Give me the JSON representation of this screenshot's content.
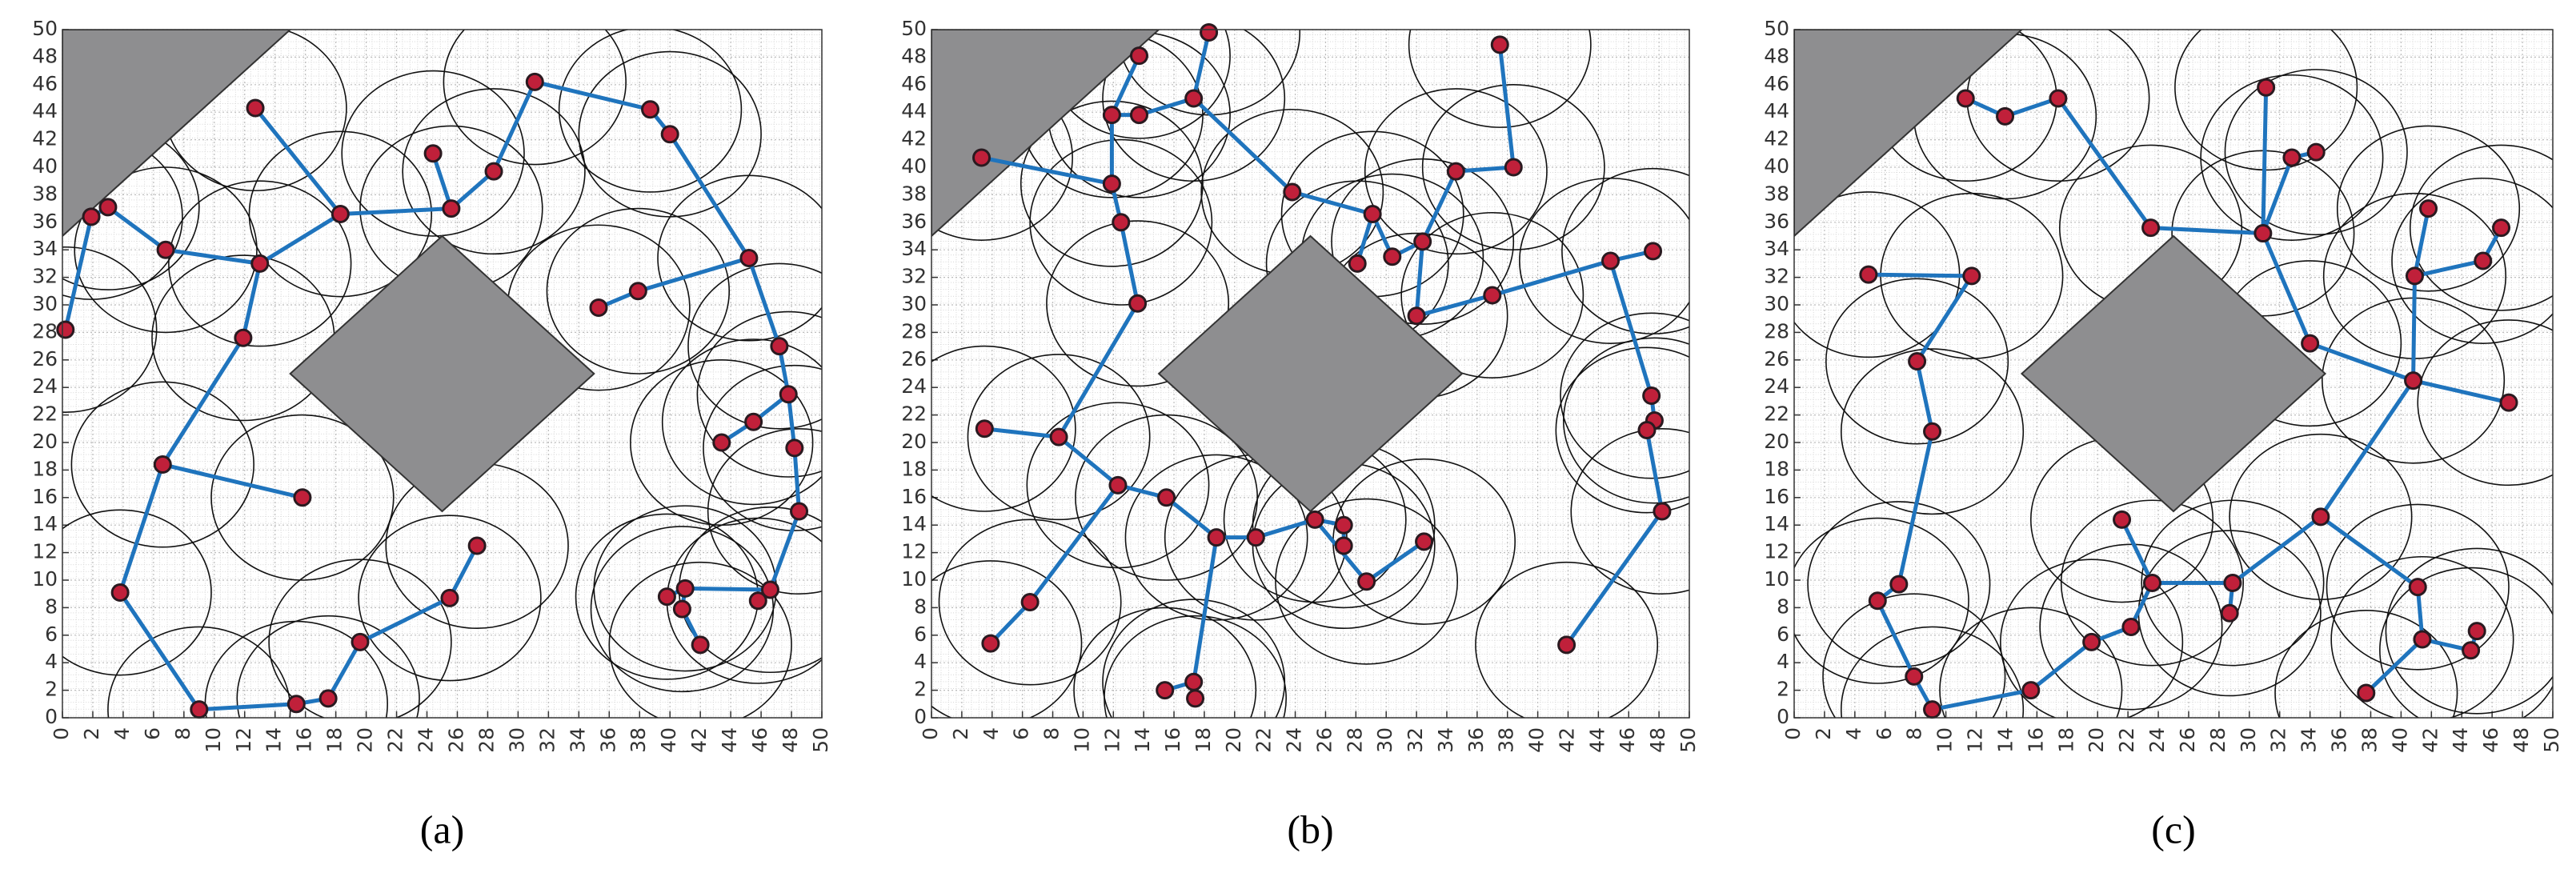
{
  "chart_data": [
    {
      "type": "scatter",
      "caption": "(a)",
      "xlim": [
        0,
        50
      ],
      "ylim": [
        0,
        50
      ],
      "xticks": [
        0,
        2,
        4,
        6,
        8,
        10,
        12,
        14,
        16,
        18,
        20,
        22,
        24,
        26,
        28,
        30,
        32,
        34,
        36,
        38,
        40,
        42,
        44,
        46,
        48,
        50
      ],
      "yticks": [
        0,
        2,
        4,
        6,
        8,
        10,
        12,
        14,
        16,
        18,
        20,
        22,
        24,
        26,
        28,
        30,
        32,
        34,
        36,
        38,
        40,
        42,
        44,
        46,
        48,
        50
      ],
      "grid": true,
      "color": "#c0203a",
      "edge_color": "#1f74bd",
      "circle_color": "#111111",
      "obstacle_color": "#8e8e90",
      "radius": 6,
      "x": [
        0.2,
        1.9,
        3,
        6.8,
        13,
        12.7,
        18.3,
        24.4,
        25.6,
        28.4,
        31.1,
        38.7,
        40,
        45.2,
        37.9,
        35.3,
        47.2,
        47.8,
        45.5,
        43.4,
        48.2,
        48.5,
        46.6,
        45.8,
        41,
        39.8,
        40.8,
        42,
        11.9,
        6.6,
        15.8,
        3.8,
        9,
        15.4,
        17.5,
        19.6,
        25.5,
        27.3
      ],
      "y": [
        28.2,
        36.4,
        37.1,
        34,
        33,
        44.3,
        36.6,
        41,
        37,
        39.7,
        46.2,
        44.2,
        42.4,
        33.4,
        31,
        29.8,
        27,
        23.5,
        21.5,
        20,
        19.6,
        15,
        9.3,
        8.5,
        9.4,
        8.8,
        7.9,
        5.3,
        27.6,
        18.4,
        16,
        9.1,
        0.6,
        1,
        1.4,
        5.5,
        8.7,
        12.5
      ],
      "edges": [
        [
          0,
          1
        ],
        [
          1,
          2
        ],
        [
          2,
          3
        ],
        [
          3,
          4
        ],
        [
          4,
          6
        ],
        [
          5,
          6
        ],
        [
          6,
          8
        ],
        [
          8,
          7
        ],
        [
          8,
          9
        ],
        [
          9,
          10
        ],
        [
          10,
          11
        ],
        [
          11,
          12
        ],
        [
          12,
          13
        ],
        [
          15,
          14
        ],
        [
          14,
          13
        ],
        [
          13,
          16
        ],
        [
          16,
          17
        ],
        [
          17,
          18
        ],
        [
          18,
          19
        ],
        [
          17,
          20
        ],
        [
          20,
          21
        ],
        [
          21,
          22
        ],
        [
          22,
          23
        ],
        [
          22,
          24
        ],
        [
          24,
          25
        ],
        [
          24,
          26
        ],
        [
          26,
          27
        ],
        [
          4,
          28
        ],
        [
          28,
          29
        ],
        [
          29,
          30
        ],
        [
          29,
          31
        ],
        [
          31,
          32
        ],
        [
          32,
          33
        ],
        [
          33,
          34
        ],
        [
          34,
          35
        ],
        [
          35,
          36
        ],
        [
          36,
          37
        ]
      ],
      "obstacles": [
        [
          [
            0,
            50
          ],
          [
            15,
            50
          ],
          [
            0,
            35
          ]
        ],
        [
          [
            15,
            25
          ],
          [
            25,
            35
          ],
          [
            35,
            25
          ],
          [
            25,
            15
          ]
        ]
      ]
    },
    {
      "type": "scatter",
      "caption": "(b)",
      "xlim": [
        0,
        50
      ],
      "ylim": [
        0,
        50
      ],
      "xticks": [
        0,
        2,
        4,
        6,
        8,
        10,
        12,
        14,
        16,
        18,
        20,
        22,
        24,
        26,
        28,
        30,
        32,
        34,
        36,
        38,
        40,
        42,
        44,
        46,
        48,
        50
      ],
      "yticks": [
        0,
        2,
        4,
        6,
        8,
        10,
        12,
        14,
        16,
        18,
        20,
        22,
        24,
        26,
        28,
        30,
        32,
        34,
        36,
        38,
        40,
        42,
        44,
        46,
        48,
        50
      ],
      "grid": true,
      "color": "#c0203a",
      "edge_color": "#1f74bd",
      "circle_color": "#111111",
      "obstacle_color": "#8e8e90",
      "radius": 6,
      "x": [
        3.3,
        3.5,
        3.9,
        6.5,
        8.4,
        12.3,
        15.5,
        18.8,
        21.4,
        25.3,
        27.2,
        27.2,
        28.7,
        32.5,
        15.4,
        17.3,
        17.4,
        13.6,
        12.5,
        11.9,
        11.9,
        13.7,
        13.7,
        17.3,
        18.3,
        23.8,
        29.1,
        30.4,
        28.1,
        32.4,
        34.6,
        38.4,
        37.5,
        32,
        37,
        44.8,
        47.6,
        47.5,
        47.7,
        47.2,
        48.2,
        41.9
      ],
      "y": [
        40.7,
        21,
        5.4,
        8.4,
        20.4,
        16.9,
        16,
        13.1,
        13.1,
        14.4,
        14,
        12.5,
        9.9,
        12.8,
        2,
        2.6,
        1.4,
        30.1,
        36,
        38.8,
        43.8,
        48.1,
        43.8,
        45,
        49.8,
        38.2,
        36.6,
        33.5,
        33,
        34.6,
        39.7,
        40,
        48.9,
        29.2,
        30.7,
        33.2,
        33.9,
        23.4,
        21.6,
        20.9,
        15,
        5.3
      ],
      "edges": [
        [
          0,
          19
        ],
        [
          1,
          4
        ],
        [
          4,
          5
        ],
        [
          5,
          3
        ],
        [
          3,
          2
        ],
        [
          5,
          6
        ],
        [
          6,
          7
        ],
        [
          7,
          8
        ],
        [
          8,
          9
        ],
        [
          9,
          10
        ],
        [
          10,
          11
        ],
        [
          9,
          12
        ],
        [
          12,
          13
        ],
        [
          7,
          15
        ],
        [
          15,
          14
        ],
        [
          15,
          16
        ],
        [
          4,
          17
        ],
        [
          17,
          18
        ],
        [
          18,
          19
        ],
        [
          19,
          20
        ],
        [
          20,
          21
        ],
        [
          20,
          22
        ],
        [
          22,
          23
        ],
        [
          23,
          24
        ],
        [
          23,
          25
        ],
        [
          25,
          26
        ],
        [
          26,
          27
        ],
        [
          26,
          28
        ],
        [
          27,
          29
        ],
        [
          29,
          30
        ],
        [
          30,
          31
        ],
        [
          31,
          32
        ],
        [
          29,
          33
        ],
        [
          33,
          34
        ],
        [
          34,
          35
        ],
        [
          35,
          36
        ],
        [
          35,
          37
        ],
        [
          37,
          38
        ],
        [
          38,
          39
        ],
        [
          39,
          40
        ],
        [
          40,
          41
        ]
      ],
      "obstacles": [
        [
          [
            0,
            50
          ],
          [
            15,
            50
          ],
          [
            0,
            35
          ]
        ],
        [
          [
            15,
            25
          ],
          [
            25,
            35
          ],
          [
            35,
            25
          ],
          [
            25,
            15
          ]
        ]
      ]
    },
    {
      "type": "scatter",
      "caption": "(c)",
      "xlim": [
        0,
        50
      ],
      "ylim": [
        0,
        50
      ],
      "xticks": [
        0,
        2,
        4,
        6,
        8,
        10,
        12,
        14,
        16,
        18,
        20,
        22,
        24,
        26,
        28,
        30,
        32,
        34,
        36,
        38,
        40,
        42,
        44,
        46,
        48,
        50
      ],
      "yticks": [
        0,
        2,
        4,
        6,
        8,
        10,
        12,
        14,
        16,
        18,
        20,
        22,
        24,
        26,
        28,
        30,
        32,
        34,
        36,
        38,
        40,
        42,
        44,
        46,
        48,
        50
      ],
      "grid": true,
      "color": "#c0203a",
      "edge_color": "#1f74bd",
      "circle_color": "#111111",
      "obstacle_color": "#8e8e90",
      "radius": 6,
      "x": [
        4.9,
        11.7,
        8.1,
        9.1,
        6.9,
        5.5,
        7.9,
        9.1,
        15.6,
        19.6,
        22.2,
        23.6,
        21.6,
        28.9,
        28.7,
        34.7,
        41.1,
        41.4,
        44.6,
        45,
        37.7,
        40.8,
        47.1,
        34,
        40.9,
        41.8,
        45.4,
        46.6,
        30.9,
        23.5,
        31.1,
        32.8,
        34.4,
        17.4,
        13.9,
        11.3
      ],
      "y": [
        32.2,
        32.1,
        25.9,
        20.8,
        9.7,
        8.5,
        3,
        0.6,
        2,
        5.5,
        6.6,
        9.8,
        14.4,
        9.8,
        7.6,
        14.6,
        9.5,
        5.7,
        4.9,
        6.3,
        1.8,
        24.5,
        22.9,
        27.2,
        32.1,
        37,
        33.2,
        35.6,
        35.2,
        35.6,
        45.8,
        40.7,
        41.1,
        45,
        43.7,
        45
      ],
      "edges": [
        [
          0,
          1
        ],
        [
          1,
          2
        ],
        [
          2,
          3
        ],
        [
          3,
          4
        ],
        [
          4,
          5
        ],
        [
          5,
          6
        ],
        [
          6,
          7
        ],
        [
          7,
          8
        ],
        [
          8,
          9
        ],
        [
          9,
          10
        ],
        [
          10,
          11
        ],
        [
          11,
          12
        ],
        [
          11,
          13
        ],
        [
          13,
          14
        ],
        [
          13,
          15
        ],
        [
          15,
          16
        ],
        [
          16,
          17
        ],
        [
          17,
          18
        ],
        [
          18,
          19
        ],
        [
          17,
          20
        ],
        [
          15,
          21
        ],
        [
          21,
          22
        ],
        [
          21,
          23
        ],
        [
          21,
          24
        ],
        [
          24,
          25
        ],
        [
          24,
          26
        ],
        [
          26,
          27
        ],
        [
          23,
          28
        ],
        [
          28,
          29
        ],
        [
          28,
          30
        ],
        [
          28,
          31
        ],
        [
          31,
          32
        ],
        [
          29,
          33
        ],
        [
          33,
          34
        ],
        [
          34,
          35
        ]
      ],
      "obstacles": [
        [
          [
            0,
            50
          ],
          [
            15,
            50
          ],
          [
            0,
            35
          ]
        ],
        [
          [
            15,
            25
          ],
          [
            25,
            35
          ],
          [
            35,
            25
          ],
          [
            25,
            15
          ]
        ]
      ]
    }
  ]
}
